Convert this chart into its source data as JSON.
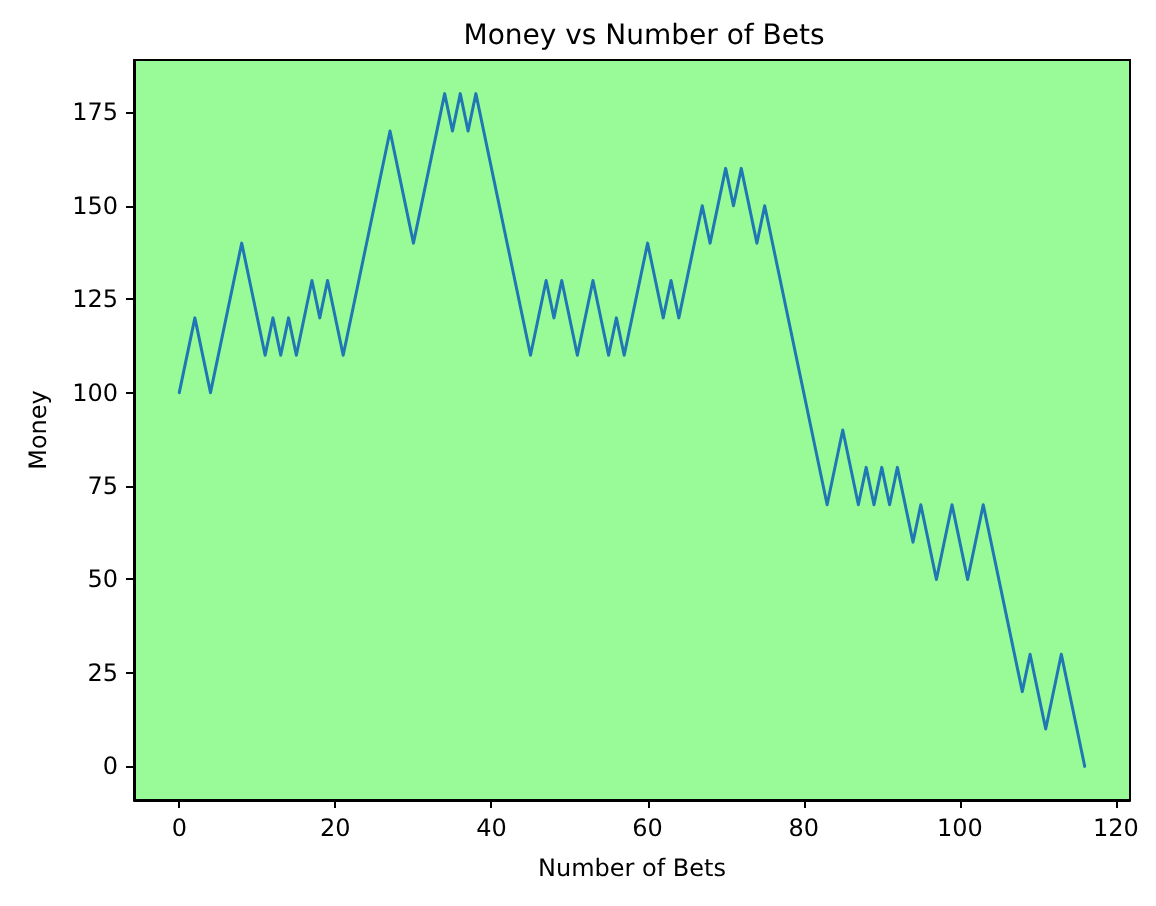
{
  "chart_data": {
    "type": "line",
    "title": "Money vs Number of Bets",
    "xlabel": "Number of Bets",
    "ylabel": "Money",
    "x": [
      0,
      2,
      4,
      8,
      11,
      12,
      13,
      14,
      15,
      17,
      18,
      19,
      21,
      27,
      30,
      34,
      35,
      36,
      37,
      38,
      45,
      47,
      48,
      49,
      51,
      53,
      55,
      56,
      57,
      60,
      62,
      63,
      64,
      67,
      68,
      70,
      71,
      72,
      74,
      75,
      83,
      85,
      87,
      88,
      89,
      90,
      91,
      92,
      94,
      95,
      97,
      99,
      101,
      103,
      108,
      109,
      111,
      113,
      116
    ],
    "series": [
      {
        "color": "#1f77b4",
        "values": [
          100,
          120,
          100,
          140,
          110,
          120,
          110,
          120,
          110,
          130,
          120,
          130,
          110,
          170,
          140,
          180,
          170,
          180,
          170,
          180,
          110,
          130,
          120,
          130,
          110,
          130,
          110,
          120,
          110,
          140,
          120,
          130,
          120,
          150,
          140,
          160,
          150,
          160,
          140,
          150,
          70,
          90,
          70,
          80,
          70,
          80,
          70,
          80,
          60,
          70,
          50,
          70,
          50,
          70,
          20,
          30,
          10,
          30,
          0
        ]
      }
    ],
    "xlim": [
      -5.8,
      121.8
    ],
    "ylim": [
      -9,
      189
    ],
    "xticks": [
      0,
      20,
      40,
      60,
      80,
      100,
      120
    ],
    "yticks": [
      0,
      25,
      50,
      75,
      100,
      125,
      150,
      175
    ],
    "grid": false,
    "marker": "none",
    "line_style": "solid"
  }
}
